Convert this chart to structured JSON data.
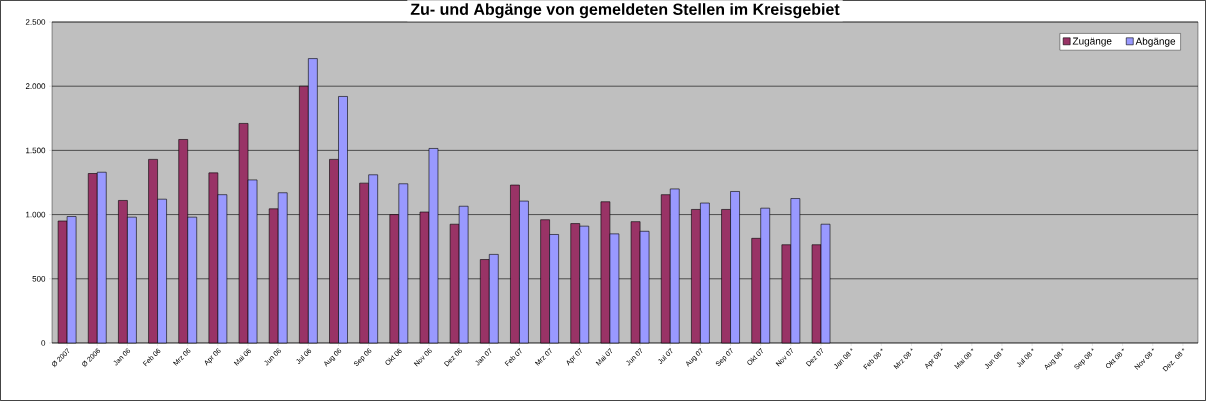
{
  "chart_data": {
    "type": "bar",
    "title": "Zu- und Abgänge von gemeldeten Stellen im Kreisgebiet",
    "categories": [
      "Ø 2007",
      "Ø 2006",
      "Jan 06",
      "Feb 06",
      "Mrz 06",
      "Apr 06",
      "Mai 06",
      "Jun 06",
      "Jul 06",
      "Aug 06",
      "Sep 06",
      "Okt 06",
      "Nov 06",
      "Dez 06",
      "Jan 07",
      "Feb 07",
      "Mrz 07",
      "Apr 07",
      "Mai 07",
      "Jun 07",
      "Jul 07",
      "Aug 07",
      "Sep 07",
      "Okt 07",
      "Nov 07",
      "Dez 07",
      "Jan 08 *",
      "Feb 08 *",
      "Mrz 08 *",
      "Apr 08 *",
      "Mai 08 *",
      "Jun 08 *",
      "Jul 08 *",
      "Aug 08 *",
      "Sep 08 *",
      "Okt 08 *",
      "Nov 08 *",
      "Dez. 08 *"
    ],
    "series": [
      {
        "name": "Zugänge",
        "color": "#993366",
        "values": [
          950,
          1320,
          1110,
          1430,
          1585,
          1325,
          1710,
          1045,
          2000,
          1430,
          1245,
          1000,
          1020,
          925,
          650,
          1230,
          960,
          930,
          1100,
          945,
          1155,
          1040,
          1040,
          815,
          765,
          765,
          null,
          null,
          null,
          null,
          null,
          null,
          null,
          null,
          null,
          null,
          null,
          null
        ]
      },
      {
        "name": "Abgänge",
        "color": "#9999ff",
        "values": [
          985,
          1330,
          980,
          1120,
          980,
          1155,
          1270,
          1170,
          2215,
          1920,
          1310,
          1240,
          1515,
          1065,
          690,
          1105,
          845,
          910,
          850,
          870,
          1200,
          1090,
          1180,
          1050,
          1125,
          925,
          null,
          null,
          null,
          null,
          null,
          null,
          null,
          null,
          null,
          null,
          null,
          null
        ]
      }
    ],
    "ylim": [
      0,
      2500
    ],
    "yticks": [
      {
        "value": 0,
        "label": "0"
      },
      {
        "value": 500,
        "label": "500"
      },
      {
        "value": 1000,
        "label": "1.000"
      },
      {
        "value": 1500,
        "label": "1.500"
      },
      {
        "value": 2000,
        "label": "2.000"
      },
      {
        "value": 2500,
        "label": "2.500"
      }
    ],
    "grid": "y",
    "legend": "top right"
  }
}
